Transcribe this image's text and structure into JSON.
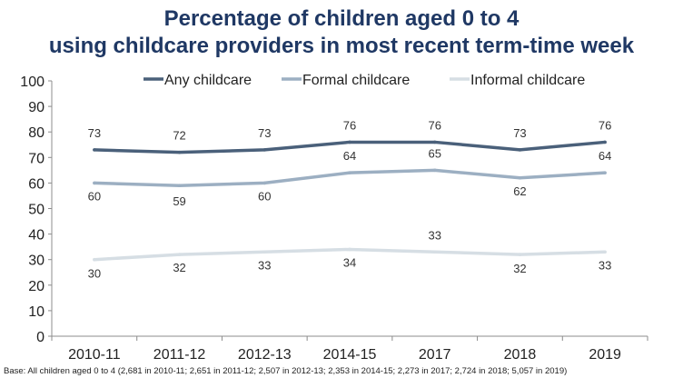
{
  "chart_data": {
    "type": "line",
    "title_line1": "Percentage of children aged 0 to 4",
    "title_line2": "using childcare providers in most recent term-time week",
    "categories": [
      "2010-11",
      "2011-12",
      "2012-13",
      "2014-15",
      "2017",
      "2018",
      "2019"
    ],
    "series": [
      {
        "name": "Any childcare",
        "values": [
          73,
          72,
          73,
          76,
          76,
          73,
          76
        ],
        "color": "#4a607a"
      },
      {
        "name": "Formal childcare",
        "values": [
          60,
          59,
          60,
          64,
          65,
          62,
          64
        ],
        "color": "#9cafc2"
      },
      {
        "name": "Informal childcare",
        "values": [
          30,
          32,
          33,
          34,
          33,
          32,
          33
        ],
        "color": "#d6dee4"
      }
    ],
    "ylim": [
      0,
      100
    ],
    "yticks": [
      "0",
      "10",
      "20",
      "30",
      "40",
      "50",
      "60",
      "70",
      "80",
      "90",
      "100"
    ],
    "legend_position": "top",
    "grid": false,
    "footnote": "Base: All children aged 0 to 4 (2,681 in 2010-11; 2,651 in 2011-12; 2,507 in 2012-13; 2,353 in 2014-15; 2,273 in 2017; 2,724 in 2018; 5,057 in 2019)"
  }
}
